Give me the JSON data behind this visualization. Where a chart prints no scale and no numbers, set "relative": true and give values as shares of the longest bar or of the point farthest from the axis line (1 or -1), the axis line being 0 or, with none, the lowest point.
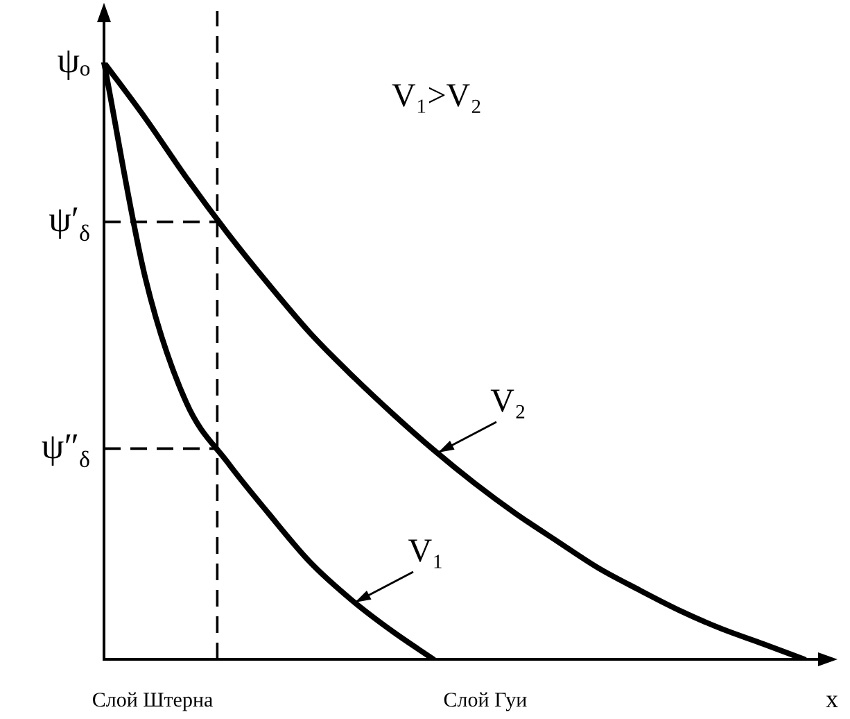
{
  "chart_data": {
    "type": "line",
    "relative": true,
    "xlabel": "x",
    "categories": [
      null,
      null,
      null,
      null,
      null,
      null,
      null,
      null,
      null,
      null,
      null,
      null,
      null,
      null,
      null,
      null,
      null,
      null
    ],
    "series": [
      {
        "name": "V₁",
        "color": "#000000",
        "values": [
          1,
          0.64,
          0.43,
          0.33,
          0.244,
          0.163,
          0.1,
          0.047,
          0,
          null,
          null,
          null,
          null,
          null,
          null,
          null,
          null,
          null
        ]
      },
      {
        "name": "V₂",
        "color": "#000000",
        "values": [
          1,
          0.907,
          0.807,
          0.714,
          0.628,
          0.547,
          0.477,
          0.412,
          0.351,
          0.295,
          0.244,
          0.198,
          0.153,
          0.116,
          0.081,
          0.051,
          0.026,
          0
        ]
      }
    ],
    "ref_lines": [
      {
        "axis": "y",
        "value": 0.733,
        "label": "ψ′$_{δ}$",
        "color": "#000000",
        "line_style": "dashed"
      },
      {
        "axis": "y",
        "value": 0.353,
        "label": "ψ″$_{δ}$",
        "color": "#000000",
        "line_style": "dashed"
      }
    ],
    "annotations": [
      "ψₒ",
      "V₁>V₂",
      "Слой Штерна",
      "Слой Гуи"
    ],
    "grid": false,
    "legend": false,
    "marker": "none",
    "line_style": "solid"
  }
}
